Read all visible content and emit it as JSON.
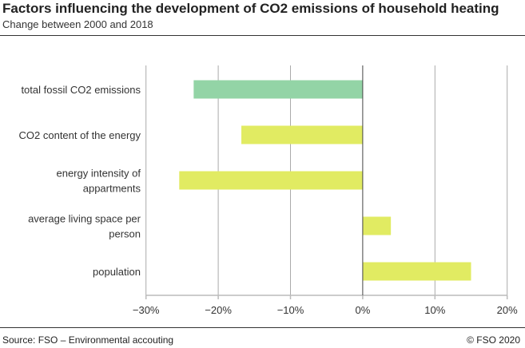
{
  "title": "Factors influencing the development of CO2 emissions of household heating",
  "subtitle": "Change between 2000 and 2018",
  "source": "Source: FSO – Environmental accouting",
  "copyright": "© FSO 2020",
  "chart_data": {
    "type": "bar",
    "orientation": "horizontal",
    "categories": [
      [
        "total fossil CO2 emissions"
      ],
      [
        "CO2 content of the energy"
      ],
      [
        "energy intensity of",
        "appartments"
      ],
      [
        "average living space per",
        "person"
      ],
      [
        "population"
      ]
    ],
    "values": [
      -23.4,
      -16.8,
      -25.4,
      3.9,
      15.0
    ],
    "colors": [
      "#93d4a6",
      "#e1eb62",
      "#e1eb62",
      "#e1eb62",
      "#e1eb62"
    ],
    "xlim": [
      -30,
      20
    ],
    "xticks": [
      -30,
      -20,
      -10,
      0,
      10,
      20
    ],
    "xtick_labels": [
      "−30%",
      "−20%",
      "−10%",
      "0%",
      "10%",
      "20%"
    ],
    "unit": "%",
    "grid": true
  }
}
